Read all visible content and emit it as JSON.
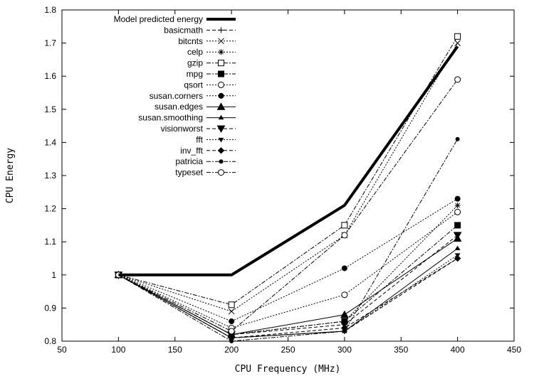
{
  "chart_data": {
    "type": "line",
    "title": "",
    "xlabel": "CPU Frequency (MHz)",
    "ylabel": "CPU Energy",
    "xlim": [
      50,
      450
    ],
    "ylim": [
      0.8,
      1.8
    ],
    "xticks": [
      50,
      100,
      150,
      200,
      250,
      300,
      350,
      400,
      450
    ],
    "yticks": [
      0.8,
      0.9,
      1.0,
      1.1,
      1.2,
      1.3,
      1.4,
      1.5,
      1.6,
      1.7,
      1.8
    ],
    "xtick_labels": [
      "50",
      "100",
      "150",
      "200",
      "250",
      "300",
      "350",
      "400",
      "450"
    ],
    "ytick_labels": [
      "0.8",
      "0.9",
      "1",
      "1.1",
      "1.2",
      "1.3",
      "1.4",
      "1.5",
      "1.6",
      "1.7",
      "1.8"
    ],
    "grid": false,
    "legend_position": "top-left",
    "x": [
      100,
      200,
      300,
      400
    ],
    "series": [
      {
        "name": "Model predicted energy",
        "values": [
          1.0,
          1.0,
          1.21,
          1.69
        ],
        "marker": "none",
        "dash": "",
        "width": 4
      },
      {
        "name": "basicmath",
        "values": [
          1.0,
          0.81,
          0.83,
          1.05
        ],
        "marker": "plus",
        "dash": "5,3",
        "width": 1
      },
      {
        "name": "bitcnts",
        "values": [
          1.0,
          0.89,
          1.12,
          1.7
        ],
        "marker": "x",
        "dash": "2,2",
        "width": 1
      },
      {
        "name": "celp",
        "values": [
          1.0,
          0.82,
          0.86,
          1.21
        ],
        "marker": "star",
        "dash": "2,2",
        "width": 1
      },
      {
        "name": "gzip",
        "values": [
          1.0,
          0.91,
          1.15,
          1.72
        ],
        "marker": "square-open",
        "dash": "6,2,2,2",
        "width": 1
      },
      {
        "name": "mpg",
        "values": [
          1.0,
          0.82,
          0.86,
          1.15
        ],
        "marker": "square-filled",
        "dash": "6,2,2,2",
        "width": 1
      },
      {
        "name": "qsort",
        "values": [
          1.0,
          0.84,
          0.94,
          1.19
        ],
        "marker": "circle-open",
        "dash": "2,2",
        "width": 1
      },
      {
        "name": "susan.corners",
        "values": [
          1.0,
          0.86,
          1.02,
          1.23
        ],
        "marker": "circle-filled",
        "dash": "2,2",
        "width": 1
      },
      {
        "name": "susan.edges",
        "values": [
          1.0,
          0.82,
          0.88,
          1.11
        ],
        "marker": "triangle-up",
        "dash": "",
        "width": 1
      },
      {
        "name": "susan.smoothing",
        "values": [
          1.0,
          0.81,
          0.83,
          1.08
        ],
        "marker": "triangle-up-small",
        "dash": "",
        "width": 1
      },
      {
        "name": "visionworst",
        "values": [
          1.0,
          0.82,
          0.85,
          1.12
        ],
        "marker": "triangle-down",
        "dash": "5,3",
        "width": 1
      },
      {
        "name": "fft",
        "values": [
          1.0,
          0.81,
          0.83,
          1.06
        ],
        "marker": "triangle-down-small",
        "dash": "2,2",
        "width": 1
      },
      {
        "name": "inv_fft",
        "values": [
          1.0,
          0.81,
          0.84,
          1.05
        ],
        "marker": "diamond",
        "dash": "5,3",
        "width": 1
      },
      {
        "name": "patricia",
        "values": [
          1.0,
          0.8,
          0.83,
          1.41
        ],
        "marker": "dot",
        "dash": "6,2,2,2",
        "width": 1
      },
      {
        "name": "typeset",
        "values": [
          1.0,
          0.83,
          1.12,
          1.59
        ],
        "marker": "circle-open",
        "dash": "6,2,2,2",
        "width": 1
      }
    ]
  }
}
